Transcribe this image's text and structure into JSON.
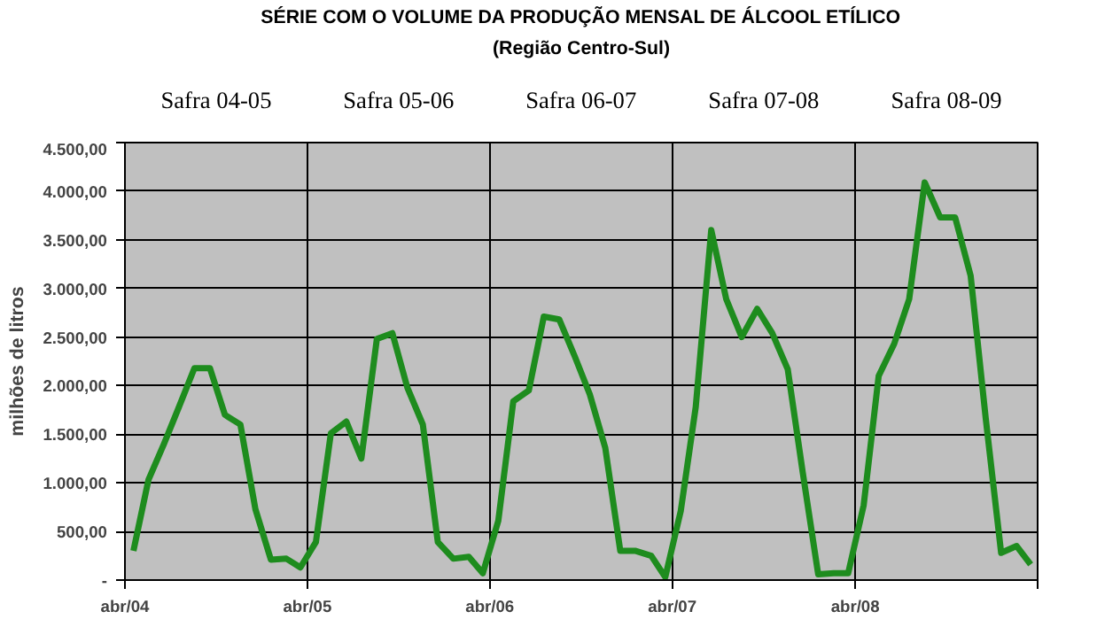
{
  "chart_data": {
    "type": "line",
    "title": "SÉRIE COM O VOLUME DA PRODUÇÃO MENSAL DE ÁLCOOL ETÍLICO",
    "subtitle": "(Região Centro-Sul)",
    "ylabel": "milhões de litros",
    "annotations": [
      "Safra 04-05",
      "Safra 05-06",
      "Safra 06-07",
      "Safra 07-08",
      "Safra 08-09"
    ],
    "x": [
      "2004-04",
      "2004-05",
      "2004-06",
      "2004-07",
      "2004-08",
      "2004-09",
      "2004-10",
      "2004-11",
      "2004-12",
      "2005-01",
      "2005-02",
      "2005-03",
      "2005-04",
      "2005-05",
      "2005-06",
      "2005-07",
      "2005-08",
      "2005-09",
      "2005-10",
      "2005-11",
      "2005-12",
      "2006-01",
      "2006-02",
      "2006-03",
      "2006-04",
      "2006-05",
      "2006-06",
      "2006-07",
      "2006-08",
      "2006-09",
      "2006-10",
      "2006-11",
      "2006-12",
      "2007-01",
      "2007-02",
      "2007-03",
      "2007-04",
      "2007-05",
      "2007-06",
      "2007-07",
      "2007-08",
      "2007-09",
      "2007-10",
      "2007-11",
      "2007-12",
      "2008-01",
      "2008-02",
      "2008-03",
      "2008-04",
      "2008-05",
      "2008-06",
      "2008-07",
      "2008-08",
      "2008-09",
      "2008-10",
      "2008-11",
      "2008-12",
      "2009-01",
      "2009-02",
      "2009-03"
    ],
    "series": [
      {
        "color": "#1e8c1e",
        "values": [
          300,
          1030,
          1400,
          1780,
          2180,
          2180,
          1700,
          1600,
          730,
          210,
          220,
          130,
          390,
          1510,
          1630,
          1250,
          2480,
          2540,
          1980,
          1600,
          390,
          220,
          240,
          70,
          610,
          1840,
          1950,
          2710,
          2680,
          2300,
          1910,
          1360,
          300,
          300,
          250,
          30,
          710,
          1780,
          3600,
          2890,
          2500,
          2790,
          2540,
          2170,
          1110,
          60,
          70,
          70,
          770,
          2100,
          2430,
          2890,
          4090,
          3730,
          3730,
          3130,
          1670,
          280,
          350,
          160
        ]
      }
    ],
    "xlim": [
      "2004-03-15",
      "2009-03-15"
    ],
    "xticks": [
      {
        "value": "2004-03-15",
        "label": "abr/04"
      },
      {
        "value": "2005-03-15",
        "label": "abr/05"
      },
      {
        "value": "2006-03-15",
        "label": "abr/06"
      },
      {
        "value": "2007-03-15",
        "label": "abr/07"
      },
      {
        "value": "2008-03-15",
        "label": "abr/08"
      },
      {
        "value": "2009-03-15",
        "label": null
      }
    ],
    "ylim": [
      0,
      4500
    ],
    "yticks": [
      {
        "value": 0,
        "label": "-"
      },
      {
        "value": 500,
        "label": "500,00"
      },
      {
        "value": 1000,
        "label": "1.000,00"
      },
      {
        "value": 1500,
        "label": "1.500,00"
      },
      {
        "value": 2000,
        "label": "2.000,00"
      },
      {
        "value": 2500,
        "label": "2.500,00"
      },
      {
        "value": 3000,
        "label": "3.000,00"
      },
      {
        "value": 3500,
        "label": "3.500,00"
      },
      {
        "value": 4000,
        "label": "4.000,00"
      },
      {
        "value": 4500,
        "label": "4.500,00"
      }
    ],
    "grid": true,
    "marker": "none",
    "line_style": "solid"
  }
}
